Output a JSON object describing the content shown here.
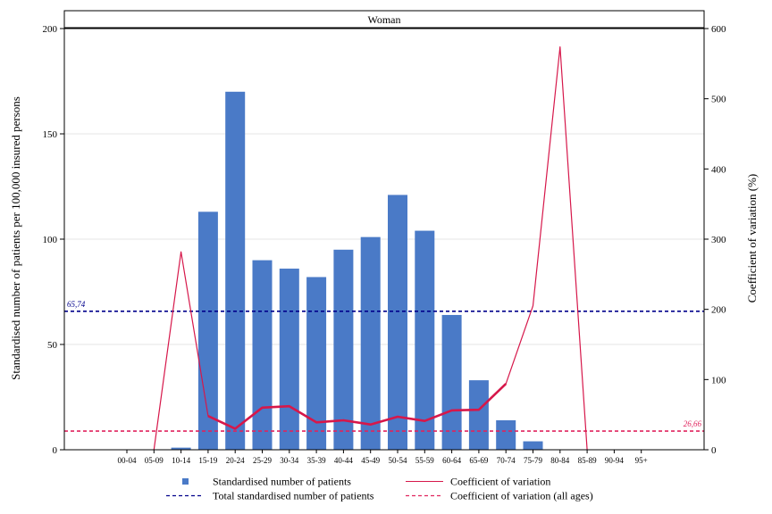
{
  "chart_data": {
    "type": "bar",
    "panel_title": "Woman",
    "categories": [
      "00-04",
      "05-09",
      "10-14",
      "15-19",
      "20-24",
      "25-29",
      "30-34",
      "35-39",
      "40-44",
      "45-49",
      "50-54",
      "55-59",
      "60-64",
      "65-69",
      "70-74",
      "75-79",
      "80-84",
      "85-89",
      "90-94",
      "95+"
    ],
    "series": [
      {
        "name": "Standardised number of patients",
        "type": "bar",
        "axis": "left",
        "color": "#4a7ac7",
        "values": [
          0,
          0,
          1,
          113,
          170,
          90,
          86,
          82,
          95,
          101,
          121,
          104,
          64,
          33,
          14,
          4,
          0,
          0,
          0,
          0
        ]
      },
      {
        "name": "Coefficient of variation",
        "type": "line",
        "axis": "right",
        "color": "#d6174a",
        "values": [
          null,
          0,
          282,
          48,
          30,
          60,
          62,
          39,
          42,
          36,
          47,
          41,
          56,
          57,
          94,
          205,
          574,
          0,
          null,
          null
        ]
      }
    ],
    "reference_lines": [
      {
        "name": "Total standardised number of patients",
        "axis": "left",
        "value": 65.74,
        "label": "65,74",
        "color": "#00008b",
        "label_position": "left"
      },
      {
        "name": "Coefficient of variation (all ages)",
        "axis": "right",
        "value": 26.66,
        "label": "26,66",
        "color": "#e0245e",
        "label_position": "right"
      }
    ],
    "y_left": {
      "label": "Standardised number of patients per 100,000 insured persons",
      "range": [
        0,
        200
      ],
      "ticks": [
        0,
        50,
        100,
        150,
        200
      ]
    },
    "y_right": {
      "label": "Coefficient of variation (%)",
      "range": [
        0,
        600
      ],
      "ticks": [
        0,
        100,
        200,
        300,
        400,
        500,
        600
      ]
    },
    "grid": true,
    "legend": [
      {
        "label": "Standardised number of patients",
        "marker": "square",
        "color": "#4a7ac7"
      },
      {
        "label": "Coefficient of variation",
        "marker": "line",
        "color": "#d6174a"
      },
      {
        "label": "Total standardised number of patients",
        "marker": "dashed",
        "color": "#00008b"
      },
      {
        "label": "Coefficient of variation (all ages)",
        "marker": "dashed",
        "color": "#e0245e"
      }
    ],
    "legend_position": "bottom"
  }
}
